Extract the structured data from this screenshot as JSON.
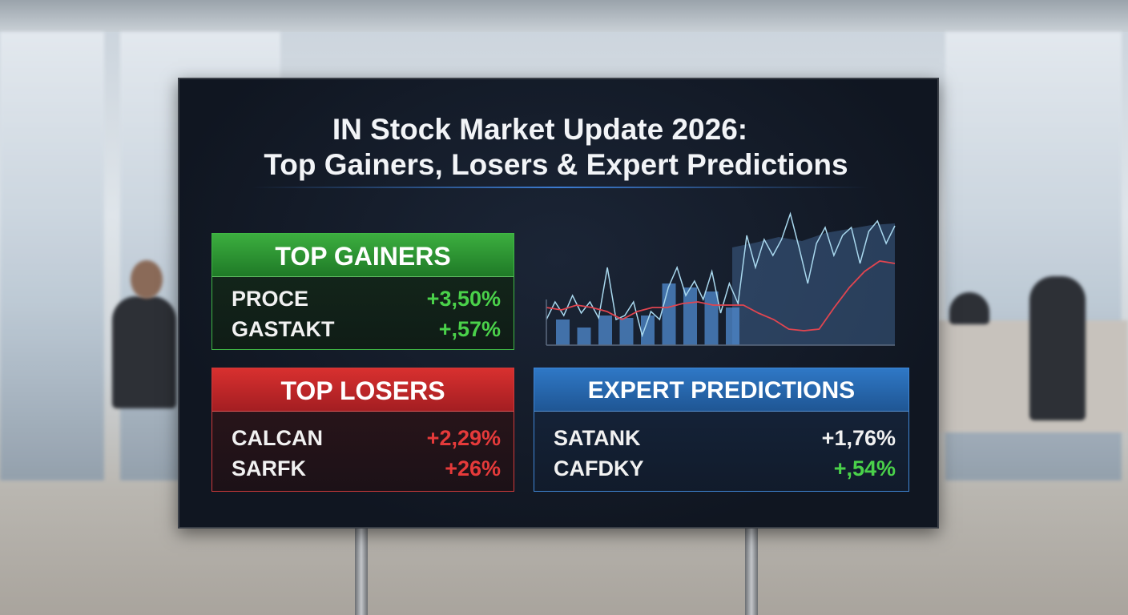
{
  "title": {
    "line1": "IN Stock Market Update 2026:",
    "line2": "Top Gainers, Losers & Expert Predictions"
  },
  "gainers": {
    "header": "TOP GAINERS",
    "rows": [
      {
        "name": "PROCE",
        "change": "+3,50%"
      },
      {
        "name": "GASTAKT",
        "change": "+,57%"
      }
    ]
  },
  "losers": {
    "header": "TOP LOSERS",
    "rows": [
      {
        "name": "CALCAN",
        "change": "+2,29%"
      },
      {
        "name": "SARFK",
        "change": "+26%"
      }
    ]
  },
  "predictions": {
    "header": "EXPERT PREDICTIONS",
    "rows": [
      {
        "name": "SATANK",
        "change": "+1,76%"
      },
      {
        "name": "CAFDKY",
        "change": "+,54%"
      }
    ]
  },
  "colors": {
    "gain": "#4ad14a",
    "loss": "#e53a3a",
    "gainers_header": "#2f9a34",
    "losers_header": "#c8262a",
    "predictions_header": "#2a6db5"
  },
  "chart": {
    "light_line": [
      32,
      54,
      37,
      62,
      40,
      54,
      34,
      97,
      32,
      37,
      54,
      12,
      42,
      32,
      72,
      97,
      62,
      80,
      57,
      92,
      40,
      77,
      52,
      137,
      97,
      132,
      112,
      132,
      164,
      122,
      77,
      127,
      147,
      112,
      137,
      147,
      102,
      142,
      155,
      127,
      149
    ],
    "red_line": [
      47,
      44,
      50,
      47,
      42,
      32,
      42,
      47,
      47,
      52,
      54,
      50,
      50,
      50,
      40,
      32,
      20,
      18,
      20,
      47,
      72,
      92,
      105,
      102
    ],
    "bars": [
      32,
      22,
      37,
      34,
      37,
      77,
      72,
      67,
      47
    ],
    "area": [
      122,
      128,
      135,
      130,
      140,
      145,
      150,
      152
    ]
  }
}
